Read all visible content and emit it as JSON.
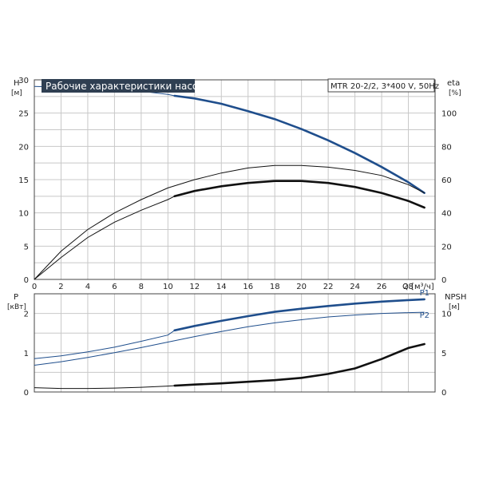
{
  "title": "Рабочие характеристики насоса",
  "model": "MTR 20-2/2, 3*400 V, 50Hz",
  "colors": {
    "blue": "#1f4e8c",
    "black": "#111111",
    "grid": "#c8c8c8",
    "title_bg": "#2f3f52"
  },
  "chart_data": [
    {
      "type": "line",
      "xlabel": "Q [м³/ч]",
      "xlim": [
        0,
        30
      ],
      "x_ticks": [
        0,
        2,
        4,
        6,
        8,
        10,
        12,
        14,
        16,
        18,
        20,
        22,
        24,
        26,
        28
      ],
      "left_axis": {
        "label": "H",
        "unit": "[м]",
        "lim": [
          0,
          30
        ],
        "ticks": [
          0,
          5,
          10,
          15,
          20,
          25,
          30
        ]
      },
      "right_axis": {
        "label": "eta",
        "unit": "[%]",
        "lim": [
          0,
          120
        ],
        "ticks": [
          0,
          20,
          40,
          60,
          80,
          100
        ]
      },
      "series": [
        {
          "axis": "left",
          "color": "#1f4e8c",
          "bold_from": 10.5,
          "x": [
            0,
            2,
            4,
            6,
            8,
            10,
            10.5,
            12,
            14,
            16,
            18,
            20,
            22,
            24,
            26,
            28,
            29.2
          ],
          "values": [
            29.0,
            28.9,
            28.8,
            28.6,
            28.3,
            27.8,
            27.6,
            27.2,
            26.4,
            25.3,
            24.1,
            22.6,
            20.9,
            19.0,
            16.9,
            14.6,
            13.0
          ]
        },
        {
          "axis": "right",
          "color": "#111111",
          "bold_from": 99,
          "x": [
            0,
            2,
            4,
            6,
            8,
            10,
            12,
            14,
            16,
            18,
            20,
            22,
            24,
            26,
            28,
            29.2
          ],
          "values": [
            0,
            17,
            30,
            40,
            48,
            55,
            60,
            64,
            67,
            68.5,
            68.5,
            67.5,
            65.5,
            62.5,
            57,
            52
          ]
        },
        {
          "axis": "left",
          "color": "#111111",
          "bold_from": 10.5,
          "x": [
            0,
            2,
            4,
            6,
            8,
            10,
            10.5,
            12,
            14,
            16,
            18,
            20,
            22,
            24,
            26,
            28,
            29.2
          ],
          "values": [
            0,
            3.3,
            6.3,
            8.6,
            10.4,
            12.0,
            12.5,
            13.3,
            14.0,
            14.5,
            14.8,
            14.8,
            14.5,
            13.9,
            13.0,
            11.8,
            10.8
          ]
        }
      ]
    },
    {
      "type": "line",
      "xlim": [
        0,
        30
      ],
      "left_axis": {
        "label": "P",
        "unit": "[кВт]",
        "lim": [
          0,
          2.5
        ],
        "ticks": [
          0,
          1,
          2
        ]
      },
      "right_axis": {
        "label": "NPSH",
        "unit": "[м]",
        "lim": [
          0,
          12.5
        ],
        "ticks": [
          0,
          5,
          10
        ]
      },
      "series": [
        {
          "name": "P1",
          "axis": "left",
          "color": "#1f4e8c",
          "bold_from": 10.5,
          "x": [
            0,
            2,
            4,
            6,
            8,
            10,
            10.5,
            12,
            14,
            16,
            18,
            20,
            22,
            24,
            26,
            28,
            29.2
          ],
          "values": [
            0.85,
            0.92,
            1.02,
            1.14,
            1.29,
            1.45,
            1.57,
            1.68,
            1.81,
            1.93,
            2.04,
            2.12,
            2.19,
            2.25,
            2.3,
            2.34,
            2.36
          ]
        },
        {
          "name": "P2",
          "axis": "left",
          "color": "#1f4e8c",
          "bold_from": 99,
          "x": [
            0,
            2,
            4,
            6,
            8,
            10,
            12,
            14,
            16,
            18,
            20,
            22,
            24,
            26,
            28,
            29.2
          ],
          "values": [
            0.68,
            0.77,
            0.88,
            1.0,
            1.13,
            1.27,
            1.41,
            1.54,
            1.66,
            1.76,
            1.84,
            1.91,
            1.96,
            2.0,
            2.02,
            2.03
          ]
        },
        {
          "axis": "right",
          "color": "#111111",
          "bold_from": 10.5,
          "x": [
            0,
            2,
            4,
            6,
            8,
            10,
            10.5,
            12,
            14,
            16,
            18,
            20,
            22,
            24,
            26,
            28,
            29.2
          ],
          "values": [
            0.55,
            0.45,
            0.45,
            0.5,
            0.6,
            0.75,
            0.8,
            0.95,
            1.1,
            1.3,
            1.5,
            1.8,
            2.3,
            3.0,
            4.2,
            5.6,
            6.1
          ]
        }
      ]
    }
  ]
}
